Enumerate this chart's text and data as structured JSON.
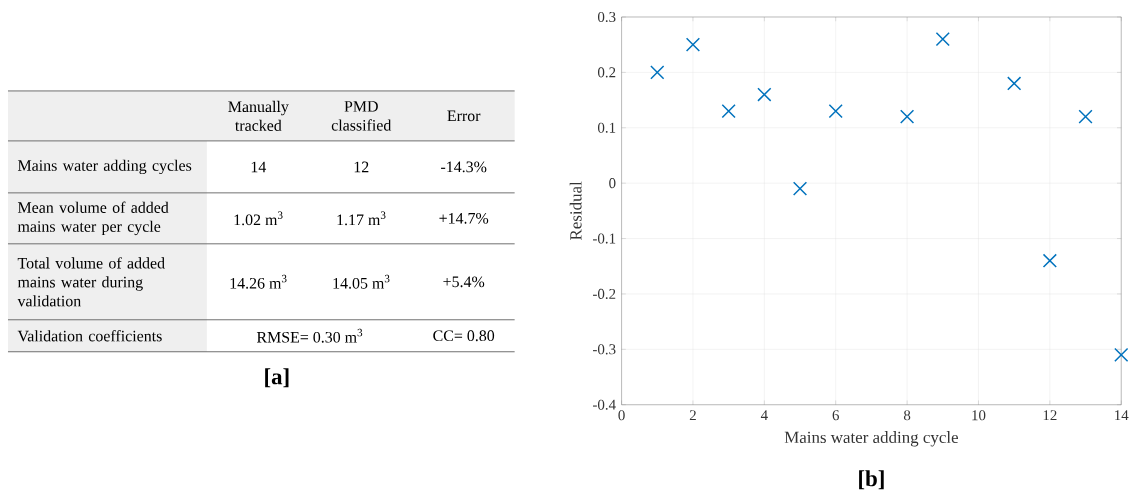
{
  "chart_data": [
    {
      "type": "other",
      "categories": [
        "Manually tracked",
        "PMD classified",
        "Error"
      ],
      "y_categories": [
        "Mains water adding cycles",
        "Mean volume of added mains water per cycle",
        "Total volume of added mains water during validation",
        "Validation coefficients"
      ],
      "cell_labels": [
        [
          "14",
          "12",
          "-14.3%"
        ],
        [
          "1.02 m$^{3}$",
          "1.17 m$^{3}$",
          "+14.7%"
        ],
        [
          "14.26 m$^{3}$",
          "14.05 m$^{3}$",
          "+5.4%"
        ],
        [
          "RMSE= 0.30 m$^{3}$",
          null,
          "CC= 0.80"
        ]
      ],
      "annotations": [
        "[a]"
      ]
    },
    {
      "type": "scatter",
      "x": [
        1,
        2,
        3,
        4,
        5,
        6,
        8,
        9,
        11,
        12,
        13,
        14
      ],
      "values": [
        0.2,
        0.25,
        0.13,
        0.16,
        -0.01,
        0.13,
        0.12,
        0.26,
        0.18,
        -0.14,
        0.12,
        -0.31
      ],
      "color": "#0072bd",
      "marker": "cross",
      "grid": true,
      "xlim": [
        0,
        14
      ],
      "ylim": [
        -0.4,
        0.3
      ],
      "xticks": [
        0,
        2,
        4,
        6,
        8,
        10,
        12,
        14
      ],
      "yticks": [
        -0.4,
        -0.3,
        -0.2,
        -0.1,
        0,
        0.1,
        0.2,
        0.3
      ],
      "xlabel": "Mains water adding cycle",
      "ylabel": "Residual",
      "annotations": [
        "[b]"
      ]
    }
  ]
}
